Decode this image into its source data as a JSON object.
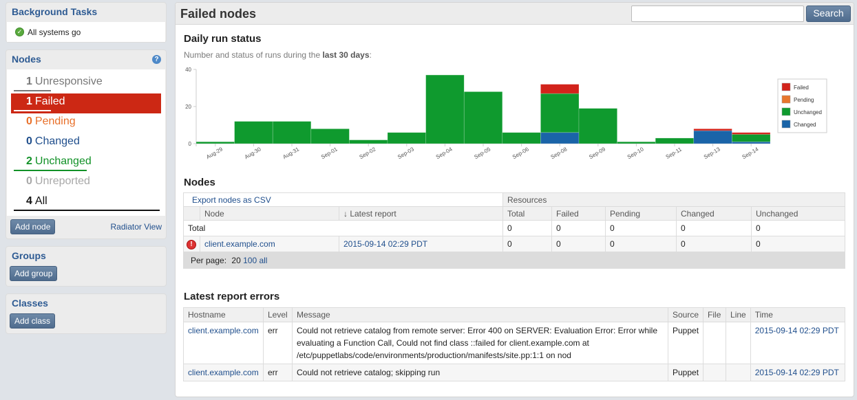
{
  "sidebar": {
    "background_tasks": {
      "title": "Background Tasks",
      "status": "All systems go"
    },
    "nodes": {
      "title": "Nodes",
      "items": [
        {
          "count": "1",
          "label": "Unresponsive"
        },
        {
          "count": "1",
          "label": "Failed"
        },
        {
          "count": "0",
          "label": "Pending"
        },
        {
          "count": "0",
          "label": "Changed"
        },
        {
          "count": "2",
          "label": "Unchanged"
        },
        {
          "count": "0",
          "label": "Unreported"
        },
        {
          "count": "4",
          "label": "All"
        }
      ],
      "add_button": "Add node",
      "radiator_link": "Radiator View"
    },
    "groups": {
      "title": "Groups",
      "add_button": "Add group"
    },
    "classes": {
      "title": "Classes",
      "add_button": "Add class"
    }
  },
  "main": {
    "title": "Failed nodes",
    "search_button": "Search",
    "daily_run": {
      "heading": "Daily run status",
      "subtitle_prefix": "Number and status of runs during the ",
      "subtitle_bold": "last 30 days",
      "subtitle_suffix": ":"
    },
    "nodes_section": {
      "heading": "Nodes",
      "export_link": "Export nodes as CSV",
      "resources_label": "Resources",
      "columns": [
        "Node",
        "↓ Latest report",
        "Total",
        "Failed",
        "Pending",
        "Changed",
        "Unchanged"
      ],
      "total_row": {
        "label": "Total",
        "values": [
          "0",
          "0",
          "0",
          "0",
          "0"
        ]
      },
      "rows": [
        {
          "node": "client.example.com",
          "latest_report": "2015-09-14 02:29 PDT",
          "values": [
            "0",
            "0",
            "0",
            "0",
            "0"
          ]
        }
      ],
      "per_page_label": "Per page:",
      "per_page_current": "20",
      "per_page_options": [
        "100",
        "all"
      ]
    },
    "errors_section": {
      "heading": "Latest report errors",
      "columns": [
        "Hostname",
        "Level",
        "Message",
        "Source",
        "File",
        "Line",
        "Time"
      ],
      "rows": [
        {
          "hostname": "client.example.com",
          "level": "err",
          "message": "Could not retrieve catalog from remote server: Error 400 on SERVER: Evaluation Error: Error while evaluating a Function Call, Could not find class ::failed for client.example.com at /etc/puppetlabs/code/environments/production/manifests/site.pp:1:1 on nod",
          "source": "Puppet",
          "file": "",
          "line": "",
          "time": "2015-09-14 02:29 PDT"
        },
        {
          "hostname": "client.example.com",
          "level": "err",
          "message": "Could not retrieve catalog; skipping run",
          "source": "Puppet",
          "file": "",
          "line": "",
          "time": "2015-09-14 02:29 PDT"
        }
      ]
    }
  },
  "chart_data": {
    "type": "bar",
    "stacked": true,
    "categories": [
      "Aug-29",
      "Aug-30",
      "Aug-31",
      "Sep-01",
      "Sep-02",
      "Sep-03",
      "Sep-04",
      "Sep-05",
      "Sep-06",
      "Sep-08",
      "Sep-09",
      "Sep-10",
      "Sep-11",
      "Sep-13",
      "Sep-14"
    ],
    "series": [
      {
        "name": "Changed",
        "color": "#1a64a8",
        "values": [
          0,
          0,
          0,
          0,
          0,
          0,
          0,
          0,
          0,
          6,
          0,
          0,
          0,
          7,
          1
        ]
      },
      {
        "name": "Unchanged",
        "color": "#0f9a2e",
        "values": [
          1,
          12,
          12,
          8,
          2,
          6,
          37,
          28,
          6,
          21,
          19,
          1,
          3,
          0,
          4
        ]
      },
      {
        "name": "Pending",
        "color": "#e8762d",
        "values": [
          0,
          0,
          0,
          0,
          0,
          0,
          0,
          0,
          0,
          0,
          0,
          0,
          0,
          0,
          0
        ]
      },
      {
        "name": "Failed",
        "color": "#d2231b",
        "values": [
          0,
          0,
          0,
          0,
          0,
          0,
          0,
          0,
          0,
          5,
          0,
          0,
          0,
          1,
          1
        ]
      }
    ],
    "yticks": [
      0,
      20,
      40
    ],
    "ylim": [
      0,
      40
    ],
    "legend_position": "right",
    "legend_order": [
      "Failed",
      "Pending",
      "Unchanged",
      "Changed"
    ]
  }
}
